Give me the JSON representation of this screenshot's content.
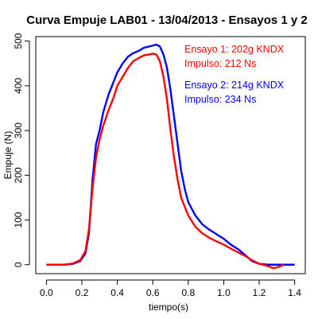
{
  "chart_data": {
    "type": "line",
    "title": "Curva Empuje LAB01 - 13/04/2013 - Ensayos 1 y 2",
    "xlabel": "tiempo(s)",
    "ylabel": "Empuje (N)",
    "xlim": [
      -0.06,
      1.46
    ],
    "ylim": [
      -20,
      510
    ],
    "x_ticks": [
      0.0,
      0.2,
      0.4,
      0.6,
      0.8,
      1.0,
      1.2,
      1.4
    ],
    "x_tick_labels": [
      "0.0",
      "0.2",
      "0.4",
      "0.6",
      "0.8",
      "1.0",
      "1.2",
      "1.4"
    ],
    "y_ticks": [
      0,
      100,
      200,
      300,
      400,
      500
    ],
    "y_tick_labels": [
      "0",
      "100",
      "200",
      "300",
      "400",
      "500"
    ],
    "grid": false,
    "legend_position": "top-right",
    "annotations": [
      {
        "line1": "Ensayo 1: 202g KNDX",
        "line2": "Impulso:  212 Ns",
        "color": "#ff0000"
      },
      {
        "line1": "Ensayo 2: 214g KNDX",
        "line2": "Impulso:  234 Ns",
        "color": "#0000ff"
      }
    ],
    "series": [
      {
        "color": "#0000ff",
        "x": [
          0.0,
          0.05,
          0.1,
          0.15,
          0.19,
          0.22,
          0.24,
          0.26,
          0.28,
          0.3,
          0.32,
          0.35,
          0.38,
          0.4,
          0.43,
          0.46,
          0.49,
          0.52,
          0.55,
          0.58,
          0.6,
          0.62,
          0.64,
          0.66,
          0.68,
          0.7,
          0.72,
          0.74,
          0.76,
          0.78,
          0.8,
          0.84,
          0.88,
          0.92,
          0.96,
          1.0,
          1.04,
          1.08,
          1.12,
          1.16,
          1.2,
          1.25,
          1.3,
          1.35,
          1.4
        ],
        "y": [
          0,
          0,
          0,
          2,
          8,
          25,
          70,
          190,
          270,
          300,
          340,
          380,
          410,
          430,
          450,
          465,
          473,
          478,
          485,
          488,
          490,
          492,
          488,
          470,
          440,
          390,
          330,
          270,
          210,
          170,
          140,
          110,
          90,
          78,
          68,
          58,
          45,
          35,
          22,
          8,
          2,
          0,
          0,
          0,
          0
        ]
      },
      {
        "color": "#ff0000",
        "x": [
          0.0,
          0.05,
          0.1,
          0.15,
          0.19,
          0.22,
          0.24,
          0.26,
          0.28,
          0.3,
          0.32,
          0.35,
          0.38,
          0.4,
          0.43,
          0.46,
          0.49,
          0.52,
          0.55,
          0.58,
          0.6,
          0.62,
          0.64,
          0.66,
          0.68,
          0.7,
          0.72,
          0.74,
          0.76,
          0.78,
          0.8,
          0.84,
          0.88,
          0.92,
          0.96,
          1.0,
          1.04,
          1.08,
          1.12,
          1.16,
          1.2,
          1.25,
          1.28,
          1.31,
          1.34
        ],
        "y": [
          0,
          0,
          0,
          3,
          10,
          30,
          80,
          170,
          240,
          280,
          310,
          345,
          375,
          400,
          420,
          440,
          455,
          462,
          468,
          470,
          472,
          470,
          455,
          420,
          370,
          300,
          240,
          190,
          150,
          130,
          110,
          85,
          70,
          60,
          52,
          45,
          36,
          28,
          20,
          10,
          2,
          -3,
          -8,
          -5,
          0
        ]
      }
    ]
  }
}
